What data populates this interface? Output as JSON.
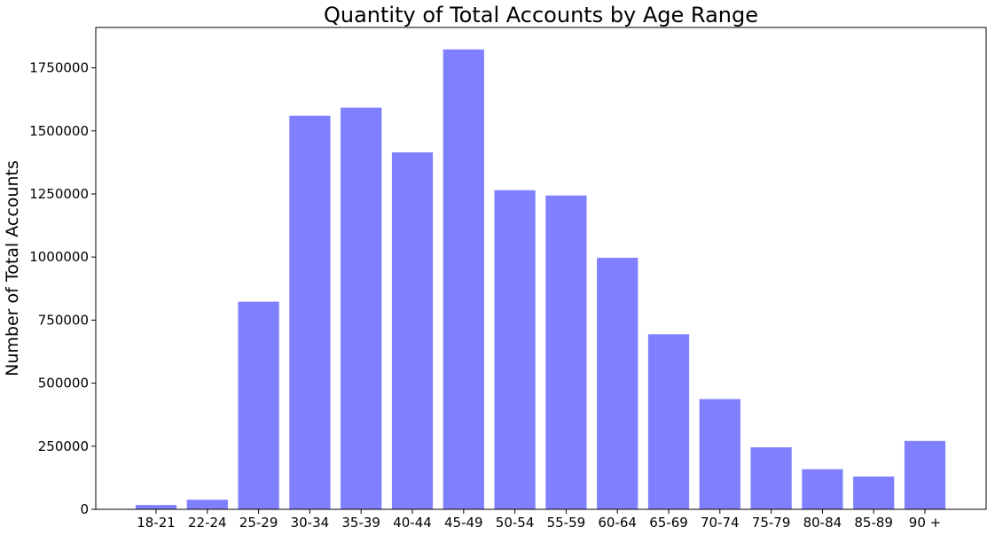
{
  "chart_data": {
    "type": "bar",
    "title": "Quantity of Total Accounts by Age Range",
    "xlabel": "",
    "ylabel": "Number of Total Accounts",
    "categories": [
      "18-21",
      "22-24",
      "25-29",
      "30-34",
      "35-39",
      "40-44",
      "45-49",
      "50-54",
      "55-59",
      "60-64",
      "65-69",
      "70-74",
      "75-79",
      "80-84",
      "85-89",
      "90 +"
    ],
    "values": [
      17000,
      38000,
      823000,
      1560000,
      1592000,
      1415000,
      1823000,
      1265000,
      1244000,
      997000,
      694000,
      437000,
      246000,
      159000,
      130000,
      271000
    ],
    "ylim": [
      0,
      1910000
    ],
    "yticks": [
      0,
      250000,
      500000,
      750000,
      1000000,
      1250000,
      1500000,
      1750000
    ],
    "ytick_labels": [
      "0",
      "250000",
      "500000",
      "750000",
      "1000000",
      "1250000",
      "1500000",
      "1750000"
    ],
    "bar_color": "#8080ff",
    "grid": false,
    "legend": false
  }
}
